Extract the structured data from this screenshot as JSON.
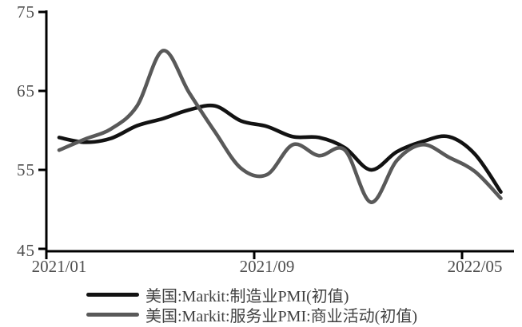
{
  "chart_data": {
    "type": "line",
    "smooth": true,
    "grid": false,
    "background": "#ffffff",
    "axis_color": "#000000",
    "tick_label_color": "#4d4d4d",
    "legend_text_color": "#404040",
    "legend_position": "bottom",
    "xlabel": "",
    "ylabel": "",
    "ylim": [
      45,
      75
    ],
    "y_ticks": [
      75,
      65,
      55,
      45
    ],
    "y_tick_labels": [
      "75",
      "65",
      "55",
      "45"
    ],
    "x_tick_labels": [
      "2021/01",
      "2021/09",
      "2022/05"
    ],
    "x_tick_month_index": [
      0,
      8,
      16
    ],
    "categories": [
      "2021/01",
      "2021/02",
      "2021/03",
      "2021/04",
      "2021/05",
      "2021/06",
      "2021/07",
      "2021/08",
      "2021/09",
      "2021/10",
      "2021/11",
      "2021/12",
      "2022/01",
      "2022/02",
      "2022/03",
      "2022/04",
      "2022/05",
      "2022/06"
    ],
    "series": [
      {
        "name": "美国:Markit:制造业PMI(初值)",
        "color": "#121212",
        "values": [
          59.1,
          58.5,
          59.0,
          60.6,
          61.5,
          62.6,
          63.1,
          61.2,
          60.5,
          59.2,
          59.1,
          57.8,
          55.0,
          57.3,
          58.6,
          59.2,
          57.0,
          52.2
        ]
      },
      {
        "name": "美国:Markit:服务业PMI:商业活动(初值)",
        "color": "#595959",
        "values": [
          57.5,
          58.9,
          60.2,
          63.1,
          70.1,
          64.8,
          59.8,
          55.2,
          54.4,
          58.2,
          56.8,
          57.5,
          50.9,
          56.2,
          58.2,
          56.6,
          54.8,
          51.4
        ]
      }
    ]
  }
}
